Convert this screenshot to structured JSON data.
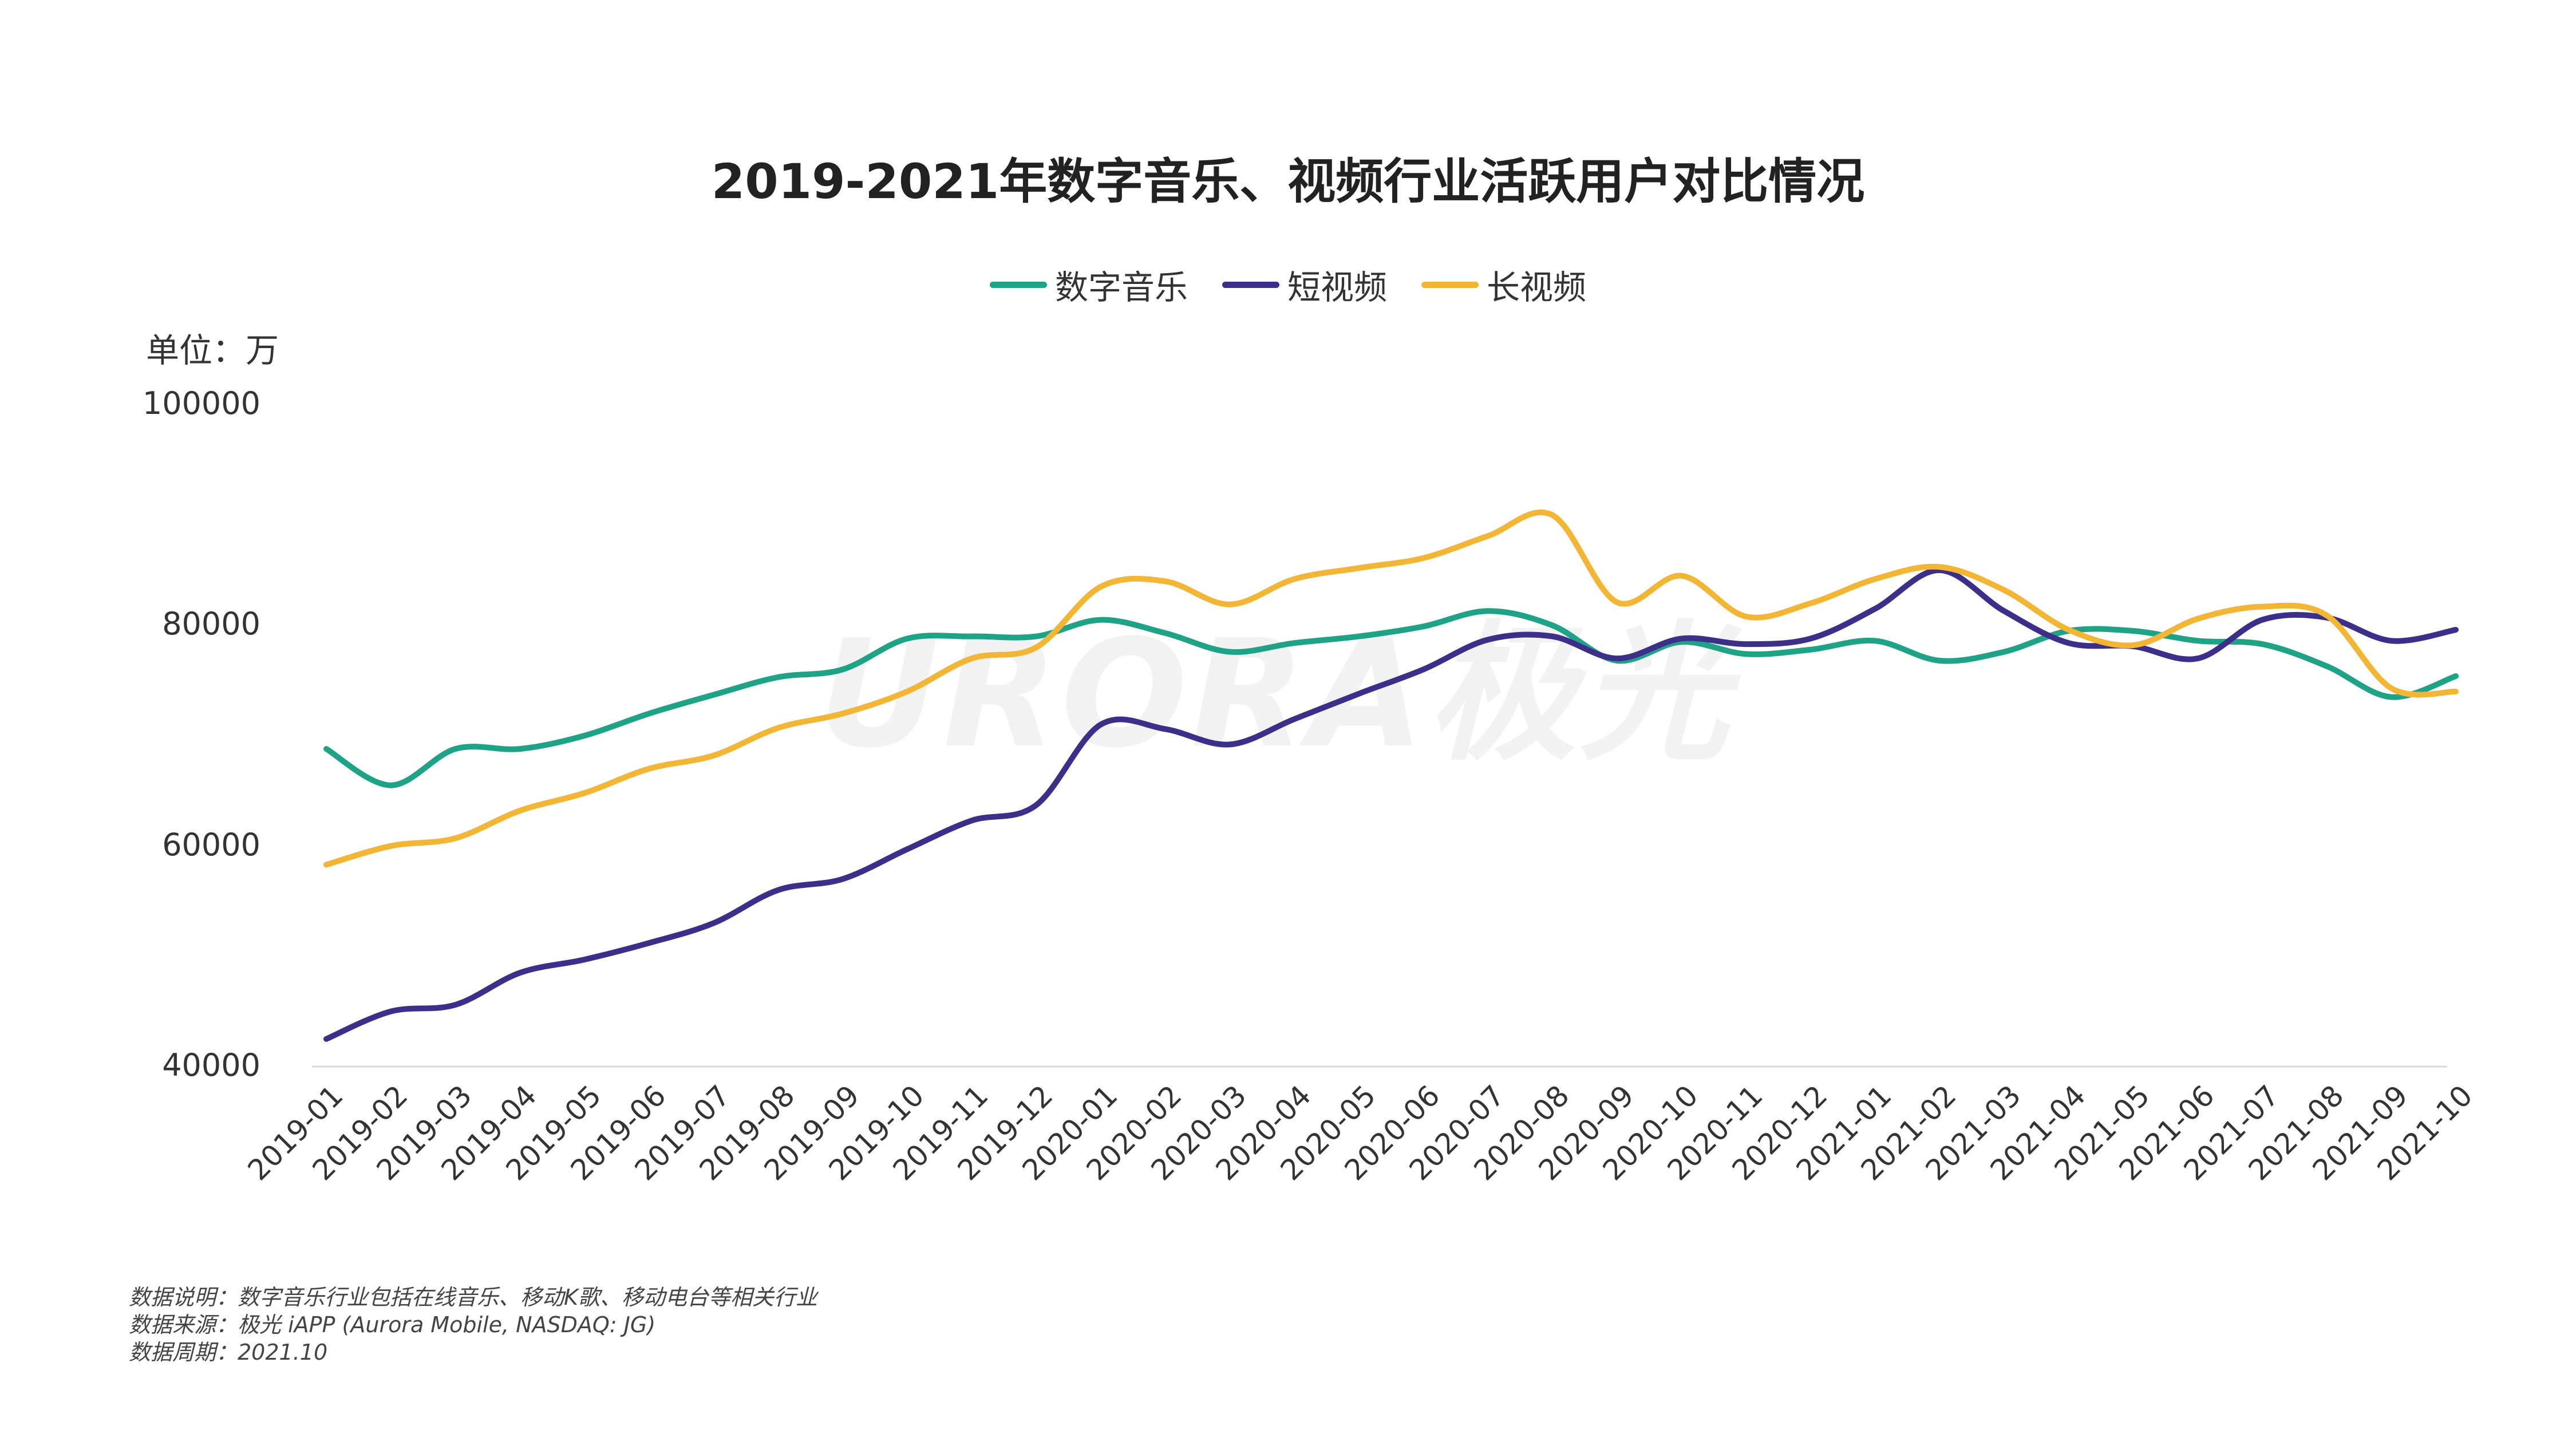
{
  "chart_data": {
    "type": "line",
    "title": "2019-2021年数字音乐、视频行业活跃用户对比情况",
    "unit_label": "单位：万",
    "categories": [
      "2019-01",
      "2019-02",
      "2019-03",
      "2019-04",
      "2019-05",
      "2019-06",
      "2019-07",
      "2019-08",
      "2019-09",
      "2019-10",
      "2019-11",
      "2019-12",
      "2020-01",
      "2020-02",
      "2020-03",
      "2020-04",
      "2020-05",
      "2020-06",
      "2020-07",
      "2020-08",
      "2020-09",
      "2020-10",
      "2020-11",
      "2020-12",
      "2021-01",
      "2021-02",
      "2021-03",
      "2021-04",
      "2021-05",
      "2021-06",
      "2021-07",
      "2021-08",
      "2021-09",
      "2021-10"
    ],
    "y_ticks": [
      "40000",
      "60000",
      "80000",
      "100000"
    ],
    "ylim": [
      40000,
      100000
    ],
    "legend_position": "top-center",
    "series": [
      {
        "name": "数字音乐",
        "color": "#1fa387",
        "values": [
          68800,
          65500,
          68800,
          68800,
          70000,
          72000,
          73700,
          75300,
          76000,
          78800,
          79000,
          79000,
          80500,
          79300,
          77600,
          78400,
          79000,
          79900,
          81300,
          80000,
          76800,
          78500,
          77400,
          77800,
          78600,
          76800,
          77600,
          79500,
          79500,
          78600,
          78300,
          76300,
          73500,
          75400
        ]
      },
      {
        "name": "短视频",
        "color": "#3c2f8a",
        "values": [
          42500,
          45000,
          45600,
          48500,
          49700,
          51200,
          53000,
          56000,
          57000,
          59700,
          62300,
          63700,
          71000,
          70600,
          69200,
          71500,
          73800,
          76000,
          78700,
          79000,
          77000,
          78800,
          78300,
          78800,
          81500,
          85000,
          81300,
          78400,
          78100,
          77000,
          80500,
          80700,
          78600,
          79600
        ]
      },
      {
        "name": "长视频",
        "color": "#f2b634",
        "values": [
          58300,
          60000,
          60700,
          63200,
          64800,
          67000,
          68200,
          70700,
          72000,
          74000,
          77000,
          78000,
          83500,
          84000,
          81900,
          84200,
          85200,
          86100,
          88100,
          90000,
          82100,
          84500,
          80800,
          82000,
          84200,
          85300,
          83200,
          79600,
          78200,
          80600,
          81700,
          80900,
          74300,
          74000
        ]
      }
    ],
    "watermark": "URORA极光"
  },
  "notes": {
    "line1": "数据说明：数字音乐行业包括在线音乐、移动K歌、移动电台等相关行业",
    "line2": "数据来源：极光 iAPP (Aurora Mobile, NASDAQ: JG)",
    "line3": "数据周期：2021.10"
  }
}
